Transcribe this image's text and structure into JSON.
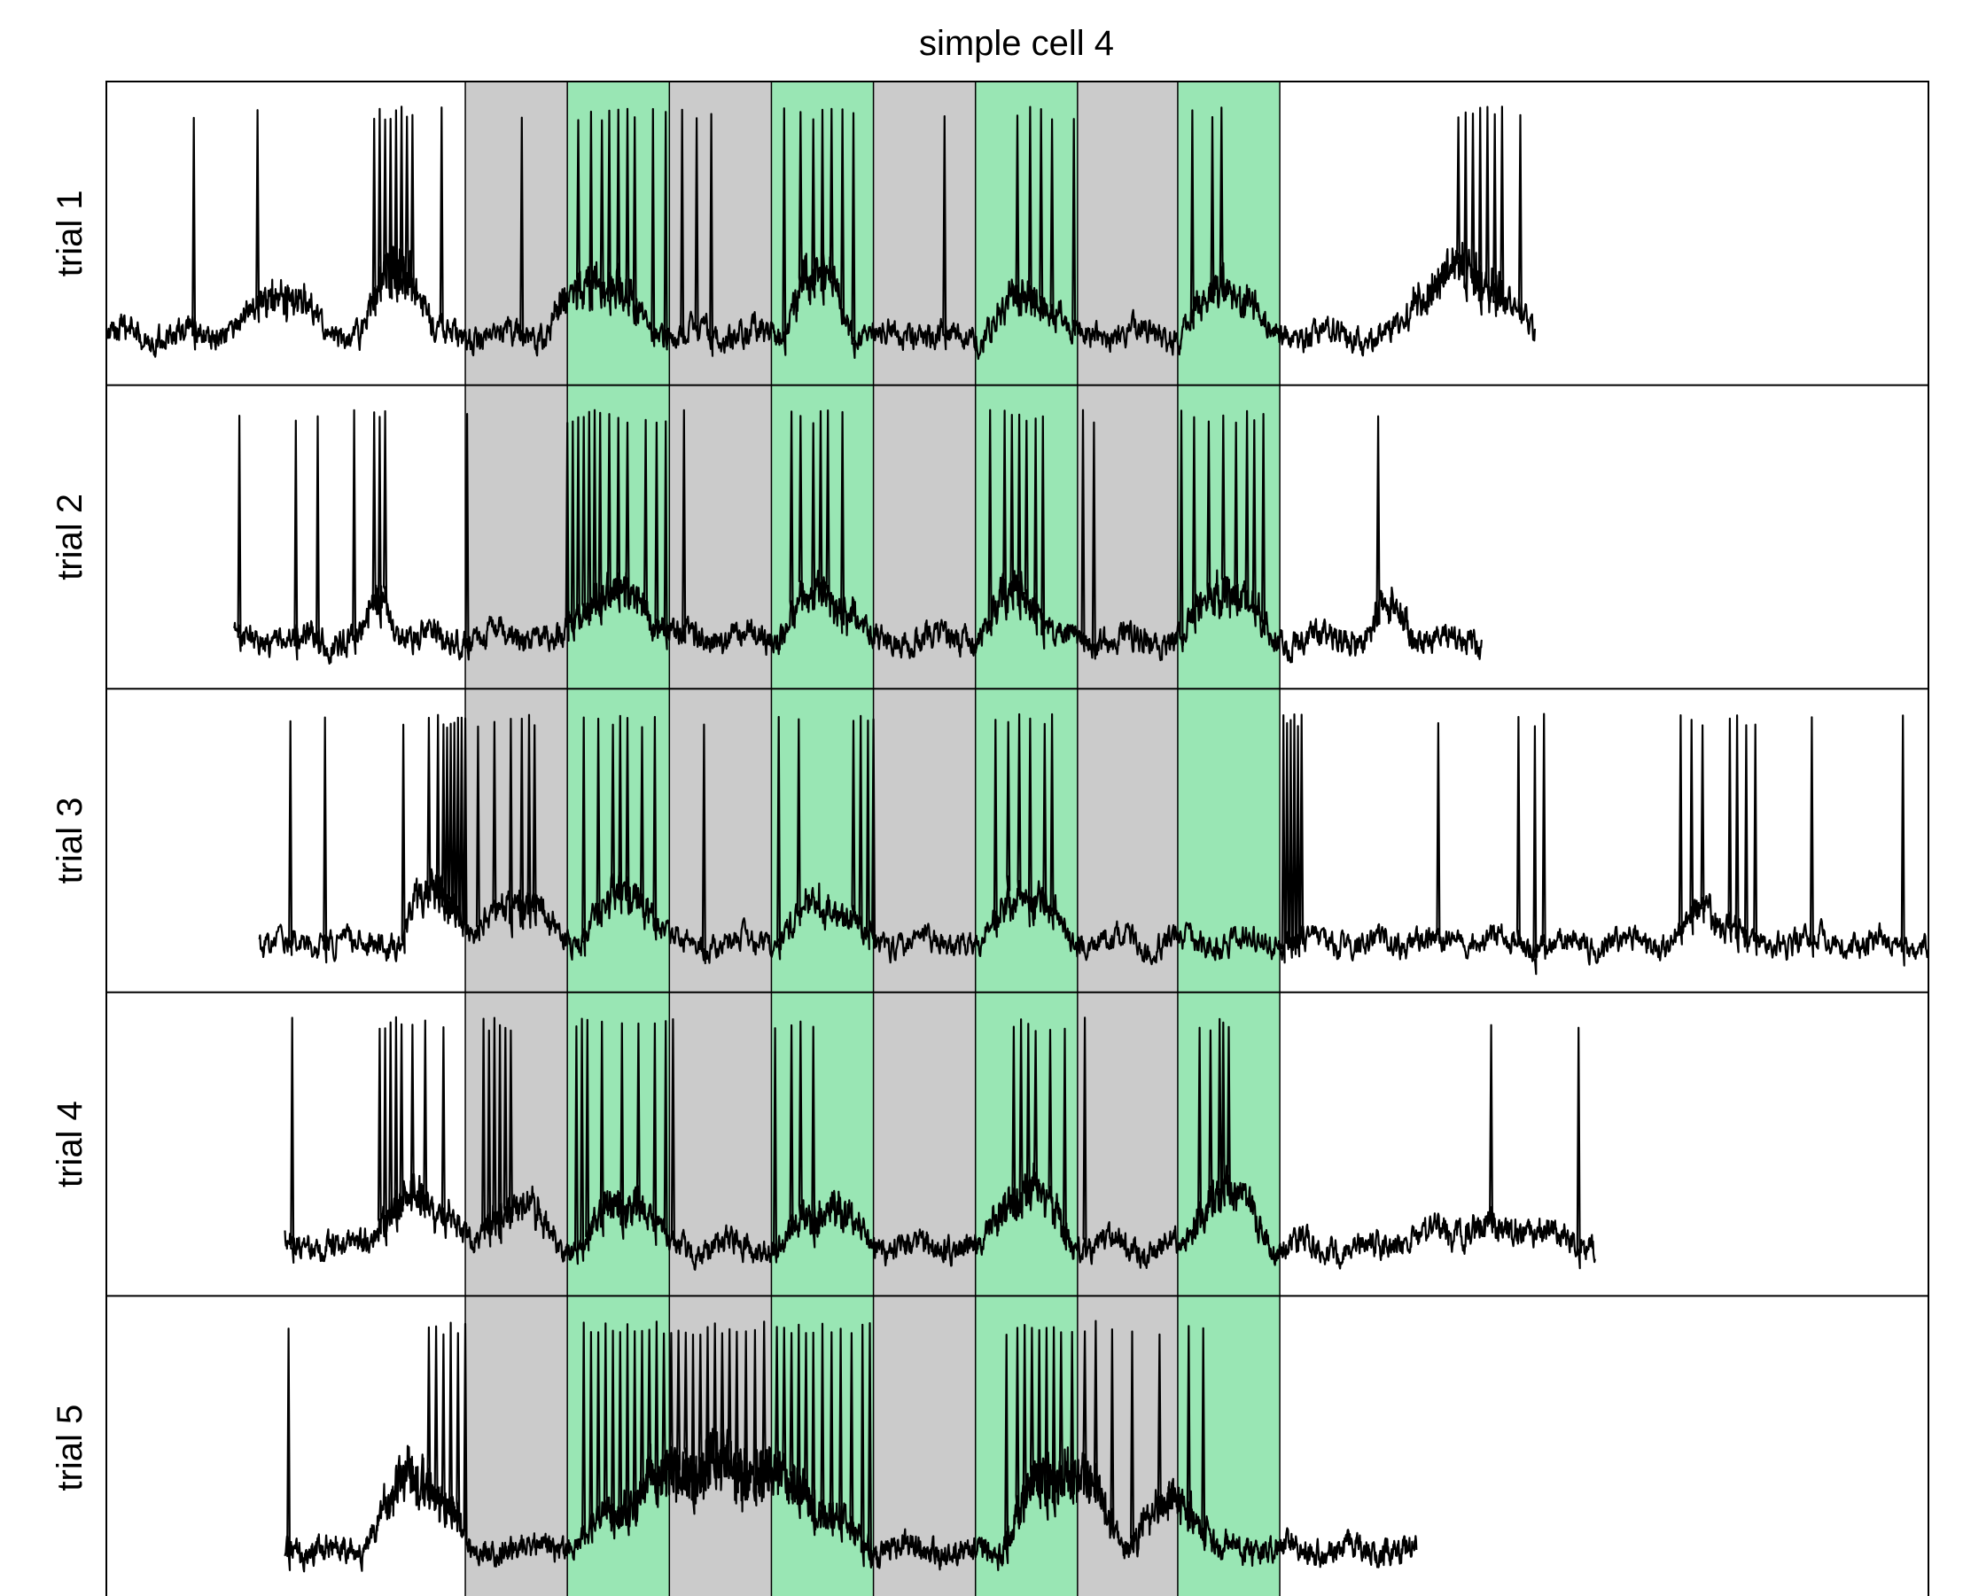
{
  "chart_data": {
    "type": "line",
    "title": "simple cell 4",
    "xlabel": "",
    "ylabel": "",
    "grid": false,
    "legend": "none",
    "colors": {
      "gray_epoch": "#cbcbcb",
      "green_epoch": "#99e6b4",
      "trace": "#000000"
    },
    "stimulus_epochs": [
      {
        "kind": "gray",
        "start": 0.197,
        "end": 0.253
      },
      {
        "kind": "green",
        "start": 0.253,
        "end": 0.309
      },
      {
        "kind": "gray",
        "start": 0.309,
        "end": 0.365
      },
      {
        "kind": "green",
        "start": 0.365,
        "end": 0.421
      },
      {
        "kind": "gray",
        "start": 0.421,
        "end": 0.477
      },
      {
        "kind": "green",
        "start": 0.477,
        "end": 0.533
      },
      {
        "kind": "gray",
        "start": 0.533,
        "end": 0.588
      },
      {
        "kind": "green",
        "start": 0.588,
        "end": 0.644
      }
    ],
    "series": [
      {
        "name": "trial 1",
        "start": 0.0,
        "end": 0.784,
        "spikes": [
          0.048,
          0.083,
          0.147,
          0.15,
          0.153,
          0.156,
          0.159,
          0.162,
          0.165,
          0.168,
          0.184,
          0.228,
          0.259,
          0.266,
          0.272,
          0.276,
          0.281,
          0.286,
          0.29,
          0.3,
          0.307,
          0.316,
          0.324,
          0.332,
          0.372,
          0.381,
          0.388,
          0.393,
          0.398,
          0.404,
          0.41,
          0.46,
          0.5,
          0.507,
          0.513,
          0.519,
          0.531,
          0.596,
          0.607,
          0.612,
          0.742,
          0.746,
          0.75,
          0.754,
          0.758,
          0.762,
          0.766,
          0.776
        ],
        "bumps": [
          [
            0.07,
            0.12,
            0.28
          ],
          [
            0.14,
            0.18,
            0.45
          ],
          [
            0.24,
            0.3,
            0.35
          ],
          [
            0.37,
            0.41,
            0.38
          ],
          [
            0.48,
            0.53,
            0.25
          ],
          [
            0.59,
            0.64,
            0.3
          ],
          [
            0.705,
            0.784,
            0.4
          ]
        ]
      },
      {
        "name": "trial 2",
        "start": 0.07,
        "end": 0.755,
        "spikes": [
          0.073,
          0.104,
          0.116,
          0.136,
          0.147,
          0.15,
          0.153,
          0.198,
          0.253,
          0.256,
          0.259,
          0.262,
          0.265,
          0.268,
          0.271,
          0.276,
          0.281,
          0.286,
          0.296,
          0.302,
          0.307,
          0.317,
          0.376,
          0.381,
          0.388,
          0.392,
          0.396,
          0.404,
          0.485,
          0.493,
          0.497,
          0.501,
          0.505,
          0.51,
          0.514,
          0.536,
          0.542,
          0.59,
          0.597,
          0.605,
          0.613,
          0.62,
          0.626,
          0.63,
          0.635,
          0.698
        ],
        "bumps": [
          [
            0.14,
            0.16,
            0.25
          ],
          [
            0.25,
            0.31,
            0.3
          ],
          [
            0.365,
            0.42,
            0.28
          ],
          [
            0.48,
            0.52,
            0.3
          ],
          [
            0.59,
            0.64,
            0.3
          ],
          [
            0.69,
            0.72,
            0.2
          ]
        ]
      },
      {
        "name": "trial 3",
        "start": 0.084,
        "end": 1.0,
        "spikes": [
          0.101,
          0.12,
          0.163,
          0.177,
          0.182,
          0.185,
          0.187,
          0.189,
          0.191,
          0.193,
          0.195,
          0.197,
          0.204,
          0.213,
          0.222,
          0.228,
          0.232,
          0.235,
          0.262,
          0.27,
          0.278,
          0.282,
          0.286,
          0.294,
          0.301,
          0.328,
          0.369,
          0.38,
          0.41,
          0.414,
          0.418,
          0.421,
          0.488,
          0.495,
          0.501,
          0.507,
          0.515,
          0.519,
          0.646,
          0.648,
          0.65,
          0.652,
          0.654,
          0.656,
          0.731,
          0.775,
          0.784,
          0.789,
          0.864,
          0.87,
          0.876,
          0.891,
          0.895,
          0.9,
          0.905,
          0.936,
          0.986
        ],
        "bumps": [
          [
            0.16,
            0.2,
            0.35
          ],
          [
            0.2,
            0.25,
            0.25
          ],
          [
            0.26,
            0.31,
            0.32
          ],
          [
            0.37,
            0.42,
            0.25
          ],
          [
            0.48,
            0.53,
            0.3
          ],
          [
            0.86,
            0.9,
            0.2
          ]
        ]
      },
      {
        "name": "trial 4",
        "start": 0.098,
        "end": 0.817,
        "spikes": [
          0.102,
          0.15,
          0.153,
          0.156,
          0.159,
          0.162,
          0.168,
          0.175,
          0.185,
          0.207,
          0.21,
          0.213,
          0.216,
          0.219,
          0.222,
          0.258,
          0.261,
          0.264,
          0.272,
          0.283,
          0.292,
          0.301,
          0.307,
          0.311,
          0.367,
          0.376,
          0.381,
          0.388,
          0.498,
          0.502,
          0.506,
          0.51,
          0.518,
          0.526,
          0.537,
          0.6,
          0.606,
          0.611,
          0.613,
          0.616,
          0.76,
          0.808
        ],
        "bumps": [
          [
            0.14,
            0.2,
            0.3
          ],
          [
            0.2,
            0.25,
            0.25
          ],
          [
            0.26,
            0.31,
            0.28
          ],
          [
            0.37,
            0.42,
            0.25
          ],
          [
            0.48,
            0.53,
            0.35
          ],
          [
            0.59,
            0.64,
            0.35
          ],
          [
            0.7,
            0.817,
            0.12
          ]
        ]
      },
      {
        "name": "trial 5",
        "start": 0.098,
        "end": 0.719,
        "spikes": [
          0.1,
          0.177,
          0.181,
          0.185,
          0.189,
          0.193,
          0.197,
          0.262,
          0.266,
          0.27,
          0.274,
          0.278,
          0.282,
          0.286,
          0.29,
          0.294,
          0.298,
          0.302,
          0.306,
          0.31,
          0.314,
          0.318,
          0.322,
          0.326,
          0.33,
          0.334,
          0.338,
          0.342,
          0.346,
          0.351,
          0.356,
          0.361,
          0.368,
          0.372,
          0.376,
          0.38,
          0.384,
          0.388,
          0.393,
          0.398,
          0.403,
          0.409,
          0.415,
          0.419,
          0.494,
          0.5,
          0.504,
          0.508,
          0.512,
          0.516,
          0.52,
          0.524,
          0.53,
          0.537,
          0.543,
          0.552,
          0.563,
          0.578,
          0.594,
          0.602
        ],
        "bumps": [
          [
            0.14,
            0.2,
            0.45
          ],
          [
            0.255,
            0.42,
            0.55
          ],
          [
            0.49,
            0.56,
            0.5
          ],
          [
            0.56,
            0.61,
            0.3
          ]
        ]
      }
    ]
  }
}
